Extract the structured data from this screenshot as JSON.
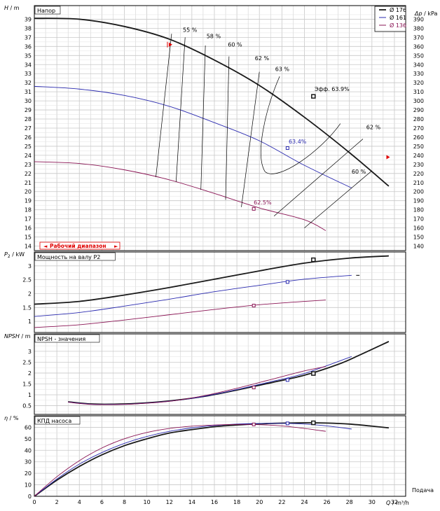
{
  "colors": {
    "d176": "#1a1a1a",
    "d161": "#2b2bb0",
    "d136": "#8a1454",
    "grid": "#c8c8c8",
    "frame": "#000000",
    "red": "#e00000"
  },
  "panels": {
    "head": {
      "title": "Напор",
      "ylabel_var": "H",
      "ylabel_unit": " / m",
      "ylabel_right_var": "Δp",
      "ylabel_right_unit": " / kPa",
      "range_label": "Рабочий диапазон"
    },
    "power": {
      "title": "Мощность на валу P2",
      "ylabel_var": "P",
      "ylabel_sub": "2",
      "ylabel_unit": " / kW"
    },
    "npsh": {
      "title": "NPSH - значения",
      "ylabel_var": "NPSH",
      "ylabel_unit": " / m"
    },
    "eff": {
      "title": "КПД насоса",
      "ylabel_var": "η",
      "ylabel_unit": " / %"
    }
  },
  "x_axis": {
    "label_var": "Q",
    "label_unit": " / m³/h",
    "label_top": "Подача",
    "ticks": [
      "0",
      "2",
      "4",
      "6",
      "8",
      "10",
      "12",
      "14",
      "16",
      "18",
      "20",
      "22",
      "24",
      "26",
      "28",
      "30",
      "32"
    ]
  },
  "legend": [
    {
      "label": "Ø 176",
      "color": "#1a1a1a"
    },
    {
      "label": "Ø 161",
      "color": "#2b2bb0"
    },
    {
      "label": "Ø 136",
      "color": "#8a1454"
    }
  ],
  "annotations": {
    "eff_labels": [
      "55 %",
      "58 %",
      "60 %",
      "62 %",
      "63 %",
      "62 %",
      "60 %"
    ],
    "bep_176": "Эфф.  63.9%",
    "bep_161": "63.4%",
    "bep_136": "62.5%"
  },
  "chart_data": [
    {
      "type": "line",
      "title": "Напор",
      "xlabel": "Q / m³/h",
      "ylabel": "H / m",
      "ylabel_right": "Δp / kPa",
      "xlim": [
        0,
        33
      ],
      "ylim": [
        13.5,
        40.5
      ],
      "yticks": [
        "14",
        "15",
        "16",
        "17",
        "18",
        "19",
        "20",
        "21",
        "22",
        "23",
        "24",
        "25",
        "26",
        "27",
        "28",
        "29",
        "30",
        "31",
        "32",
        "33",
        "34",
        "35",
        "36",
        "37",
        "38",
        "39"
      ],
      "yticks_right": [
        "140",
        "150",
        "160",
        "170",
        "180",
        "190",
        "200",
        "210",
        "220",
        "230",
        "240",
        "250",
        "260",
        "270",
        "280",
        "290",
        "300",
        "310",
        "320",
        "330",
        "340",
        "350",
        "360",
        "370",
        "380",
        "390"
      ],
      "series": [
        {
          "name": "Ø 176",
          "x": [
            0,
            4,
            8,
            12,
            16,
            20,
            24,
            28,
            31.5
          ],
          "y": [
            39.1,
            39.0,
            38.2,
            36.8,
            34.5,
            31.7,
            28.2,
            24.3,
            20.6
          ]
        },
        {
          "name": "Ø 161",
          "x": [
            0,
            4,
            8,
            12,
            16,
            20,
            24,
            28.2
          ],
          "y": [
            31.6,
            31.3,
            30.6,
            29.4,
            27.6,
            25.6,
            22.9,
            20.4
          ]
        },
        {
          "name": "Ø 136",
          "x": [
            0,
            4,
            8,
            12,
            16,
            20,
            24,
            25.9
          ],
          "y": [
            23.3,
            23.1,
            22.4,
            21.3,
            19.8,
            18.2,
            16.9,
            15.7
          ]
        }
      ],
      "bep_points": [
        {
          "x": 24.8,
          "y": 30.5
        },
        {
          "x": 22.5,
          "y": 24.8
        },
        {
          "x": 19.5,
          "y": 18.1
        }
      ],
      "operating_range": {
        "x_min": 12.2,
        "x_max": 31.6
      }
    },
    {
      "type": "line",
      "title": "Мощность на валу P2",
      "xlabel": "Q / m³/h",
      "ylabel": "P2 / kW",
      "xlim": [
        0,
        33
      ],
      "ylim": [
        0.6,
        3.5
      ],
      "yticks": [
        "1",
        "1.5",
        "2",
        "2.5",
        "3"
      ],
      "series": [
        {
          "name": "Ø 176",
          "x": [
            0,
            4,
            8,
            12,
            16,
            20,
            24,
            28,
            31.5
          ],
          "y": [
            1.62,
            1.72,
            1.95,
            2.22,
            2.52,
            2.82,
            3.1,
            3.28,
            3.36
          ]
        },
        {
          "name": "Ø 161",
          "x": [
            0,
            4,
            8,
            12,
            16,
            20,
            24,
            28.2
          ],
          "y": [
            1.18,
            1.32,
            1.55,
            1.8,
            2.07,
            2.3,
            2.52,
            2.66
          ]
        },
        {
          "name": "Ø 136",
          "x": [
            0,
            4,
            8,
            12,
            16,
            20,
            24,
            25.9
          ],
          "y": [
            0.78,
            0.88,
            1.05,
            1.24,
            1.43,
            1.6,
            1.72,
            1.77
          ]
        }
      ],
      "bep_points": [
        {
          "x": 24.8,
          "y": 3.22
        },
        {
          "x": 22.5,
          "y": 2.42
        },
        {
          "x": 19.5,
          "y": 1.57
        }
      ]
    },
    {
      "type": "line",
      "title": "NPSH - значения",
      "xlabel": "Q / m³/h",
      "ylabel": "NPSH / m",
      "xlim": [
        0,
        33
      ],
      "ylim": [
        0.1,
        3.8
      ],
      "yticks": [
        "0.5",
        "1",
        "1.5",
        "2",
        "2.5",
        "3"
      ],
      "series": [
        {
          "name": "Ø 176",
          "x": [
            3,
            5,
            7,
            9,
            12,
            15,
            18,
            21,
            24,
            27,
            29,
            31.5
          ],
          "y": [
            0.68,
            0.58,
            0.57,
            0.6,
            0.72,
            0.92,
            1.22,
            1.55,
            1.9,
            2.4,
            2.85,
            3.45
          ]
        },
        {
          "name": "Ø 161",
          "x": [
            3,
            5,
            7,
            9,
            12,
            15,
            18,
            21,
            24,
            28.2
          ],
          "y": [
            0.67,
            0.57,
            0.56,
            0.59,
            0.71,
            0.92,
            1.24,
            1.6,
            1.98,
            2.76
          ]
        },
        {
          "name": "Ø 136",
          "x": [
            3,
            5,
            7,
            9,
            12,
            15,
            18,
            21,
            24,
            25.9
          ],
          "y": [
            0.66,
            0.56,
            0.55,
            0.58,
            0.7,
            0.95,
            1.3,
            1.7,
            2.1,
            2.3
          ]
        }
      ],
      "bep_points": [
        {
          "x": 24.8,
          "y": 1.98
        },
        {
          "x": 22.5,
          "y": 1.68
        },
        {
          "x": 19.5,
          "y": 1.34
        }
      ]
    },
    {
      "type": "line",
      "title": "КПД насоса",
      "xlabel": "Q / m³/h",
      "ylabel": "η / %",
      "xlim": [
        0,
        33
      ],
      "ylim": [
        0,
        70
      ],
      "yticks": [
        "0",
        "10",
        "20",
        "30",
        "40",
        "50",
        "60"
      ],
      "series": [
        {
          "name": "Ø 176",
          "x": [
            0,
            2,
            4,
            6,
            8,
            10,
            12,
            14,
            16,
            18,
            20,
            22,
            24,
            26,
            28,
            30,
            31.5
          ],
          "y": [
            0,
            14,
            26,
            36,
            44,
            50,
            55,
            58,
            60.5,
            62,
            63,
            63.6,
            63.9,
            63.7,
            62.8,
            61,
            59.5
          ]
        },
        {
          "name": "Ø 161",
          "x": [
            0,
            2,
            4,
            6,
            8,
            10,
            12,
            14,
            16,
            18,
            20,
            22,
            24,
            26,
            28.2
          ],
          "y": [
            0,
            15,
            28,
            38,
            46,
            52,
            56.5,
            59.5,
            61.5,
            62.8,
            63.3,
            63.4,
            62.8,
            61.2,
            58.5
          ]
        },
        {
          "name": "Ø 136",
          "x": [
            0,
            2,
            4,
            6,
            8,
            10,
            12,
            14,
            16,
            18,
            20,
            22,
            24,
            25.9
          ],
          "y": [
            0,
            17,
            31,
            42,
            50,
            55.5,
            59,
            61,
            62,
            62.5,
            62.3,
            61.2,
            59,
            56.5
          ]
        }
      ],
      "bep_points": [
        {
          "x": 24.8,
          "y": 63.9
        },
        {
          "x": 22.5,
          "y": 63.4
        },
        {
          "x": 19.5,
          "y": 62.5
        }
      ]
    }
  ]
}
